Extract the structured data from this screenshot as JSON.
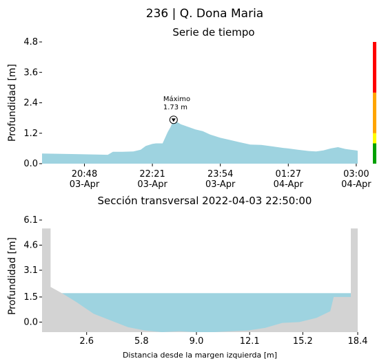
{
  "header": {
    "title": "236 | Q. Dona Maria"
  },
  "chart_data": [
    {
      "type": "area",
      "title": "Serie de tiempo",
      "ylabel": "Profundidad [m]",
      "xlabel": "",
      "ylim": [
        0,
        4.8
      ],
      "yticks": [
        0.0,
        1.2,
        2.4,
        3.6,
        4.8
      ],
      "ytick_labels": [
        "0.0",
        "1.2",
        "2.4",
        "3.6",
        "4.8"
      ],
      "xlim": [
        "2022-04-03 19:50",
        "2022-04-04 03:02"
      ],
      "xticks": [
        {
          "time": "2022-04-03 20:48",
          "label1": "20:48",
          "label2": "03-Apr"
        },
        {
          "time": "2022-04-03 22:21",
          "label1": "22:21",
          "label2": "03-Apr"
        },
        {
          "time": "2022-04-03 23:54",
          "label1": "23:54",
          "label2": "03-Apr"
        },
        {
          "time": "2022-04-04 01:27",
          "label1": "01:27",
          "label2": "04-Apr"
        },
        {
          "time": "2022-04-04 03:00",
          "label1": "03:00",
          "label2": "04-Apr"
        }
      ],
      "series": [
        {
          "color": "#9ed3e0",
          "x": [
            "2022-04-03 19:50",
            "2022-04-03 20:10",
            "2022-04-03 20:30",
            "2022-04-03 20:48",
            "2022-04-03 21:05",
            "2022-04-03 21:20",
            "2022-04-03 21:27",
            "2022-04-03 21:40",
            "2022-04-03 21:55",
            "2022-04-03 22:05",
            "2022-04-03 22:12",
            "2022-04-03 22:21",
            "2022-04-03 22:26",
            "2022-04-03 22:35",
            "2022-04-03 22:42",
            "2022-04-03 22:46",
            "2022-04-03 22:50",
            "2022-04-03 23:00",
            "2022-04-03 23:10",
            "2022-04-03 23:20",
            "2022-04-03 23:30",
            "2022-04-03 23:40",
            "2022-04-03 23:54",
            "2022-04-04 00:05",
            "2022-04-04 00:20",
            "2022-04-04 00:35",
            "2022-04-04 00:50",
            "2022-04-04 01:05",
            "2022-04-04 01:20",
            "2022-04-04 01:27",
            "2022-04-04 01:40",
            "2022-04-04 01:55",
            "2022-04-04 02:05",
            "2022-04-04 02:15",
            "2022-04-04 02:25",
            "2022-04-04 02:35",
            "2022-04-04 02:45",
            "2022-04-04 03:00",
            "2022-04-04 03:02"
          ],
          "y": [
            0.4,
            0.39,
            0.38,
            0.37,
            0.36,
            0.35,
            0.47,
            0.47,
            0.48,
            0.55,
            0.7,
            0.78,
            0.8,
            0.8,
            1.25,
            1.45,
            1.73,
            1.55,
            1.45,
            1.35,
            1.28,
            1.15,
            1.02,
            0.95,
            0.85,
            0.75,
            0.74,
            0.68,
            0.62,
            0.6,
            0.55,
            0.5,
            0.48,
            0.52,
            0.6,
            0.65,
            0.58,
            0.52,
            0.51
          ]
        }
      ],
      "annotation": {
        "label1": "Máximo",
        "label2": "1.73 m",
        "x": "2022-04-03 22:50",
        "y": 1.73
      },
      "threshold_colors": [
        "#00a000",
        "#ffff00",
        "#ffa500",
        "#ff0000"
      ],
      "threshold_limits": [
        0.0,
        0.8,
        1.2,
        2.8,
        4.8
      ]
    },
    {
      "type": "area",
      "title": "Sección transversal 2022-04-03 22:50:00",
      "xlabel": "Distancia desde la margen izquierda [m]",
      "ylabel": "Profundidad [m]",
      "xlim": [
        0,
        18.4
      ],
      "ylim": [
        -0.6,
        6.1
      ],
      "xticks": [
        2.6,
        5.8,
        9.0,
        12.1,
        15.2,
        18.4
      ],
      "xtick_labels": [
        "2.6",
        "5.8",
        "9.0",
        "12.1",
        "15.2",
        "18.4"
      ],
      "yticks": [
        0.0,
        1.5,
        3.1,
        4.6,
        6.1
      ],
      "ytick_labels": [
        "0.0",
        "1.5",
        "3.1",
        "4.6",
        "6.1"
      ],
      "water_level": 1.73,
      "water_color": "#9ed3e0",
      "ground_color": "#d3d3d3",
      "ground": {
        "x": [
          0.0,
          0.5,
          0.5,
          1.2,
          2.0,
          3.0,
          4.0,
          5.0,
          6.0,
          7.0,
          8.0,
          9.0,
          10.0,
          11.0,
          12.0,
          13.0,
          14.0,
          15.0,
          16.0,
          16.8,
          17.0,
          17.5,
          18.0,
          18.0,
          18.4
        ],
        "y": [
          5.6,
          5.6,
          2.1,
          1.7,
          1.2,
          0.5,
          0.1,
          -0.3,
          -0.5,
          -0.6,
          -0.55,
          -0.6,
          -0.6,
          -0.55,
          -0.5,
          -0.35,
          -0.05,
          0.0,
          0.25,
          0.65,
          1.5,
          1.5,
          1.5,
          5.6,
          5.6
        ]
      }
    }
  ]
}
